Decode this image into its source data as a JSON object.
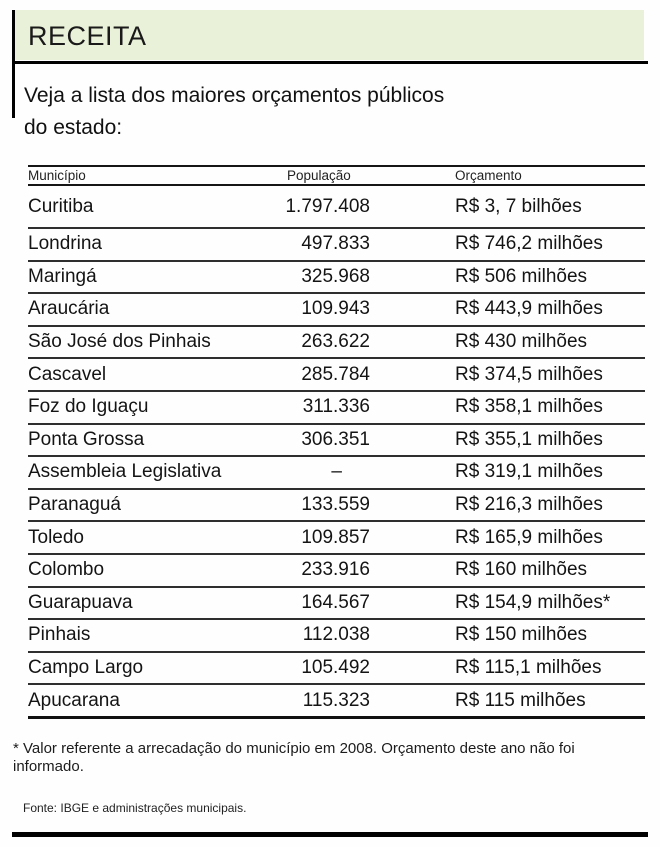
{
  "page": {
    "title": "RECEITA",
    "intro": "Veja a lista dos maiores orçamentos públicos do estado:"
  },
  "chart_data": {
    "type": "table",
    "title": "RECEITA",
    "columns": [
      "Município",
      "População",
      "Orçamento"
    ],
    "rows": [
      [
        "Curitiba",
        "1.797.408",
        "R$ 3, 7 bilhões"
      ],
      [
        "Londrina",
        "497.833",
        "R$ 746,2 milhões"
      ],
      [
        "Maringá",
        "325.968",
        "R$ 506 milhões"
      ],
      [
        "Araucária",
        "109.943",
        "R$ 443,9 milhões"
      ],
      [
        "São José dos Pinhais",
        "263.622",
        "R$ 430 milhões"
      ],
      [
        "Cascavel",
        "285.784",
        "R$ 374,5 milhões"
      ],
      [
        "Foz do Iguaçu",
        "311.336",
        "R$ 358,1 milhões"
      ],
      [
        "Ponta Grossa",
        "306.351",
        "R$ 355,1 milhões"
      ],
      [
        "Assembleia Legislativa",
        "–",
        "R$ 319,1 milhões"
      ],
      [
        "Paranaguá",
        "133.559",
        "R$ 216,3 milhões"
      ],
      [
        "Toledo",
        "109.857",
        "R$ 165,9 milhões"
      ],
      [
        "Colombo",
        "233.916",
        "R$ 160 milhões"
      ],
      [
        "Guarapuava",
        "164.567",
        "R$ 154,9 milhões*"
      ],
      [
        "Pinhais",
        "112.038",
        "R$ 150 milhões"
      ],
      [
        "Campo Largo",
        "105.492",
        "R$ 115,1 milhões"
      ],
      [
        "Apucarana",
        "115.323",
        "R$ 115 milhões"
      ]
    ]
  },
  "footnote": "* Valor referente a arrecadação do município em 2008. Orçamento deste ano não foi informado.",
  "source": "Fonte: IBGE e administrações municipais.",
  "colors": {
    "header_bg": "#e9f2d8",
    "text": "#161616",
    "rule": "#000000",
    "row_line": "#2e2e2e"
  }
}
